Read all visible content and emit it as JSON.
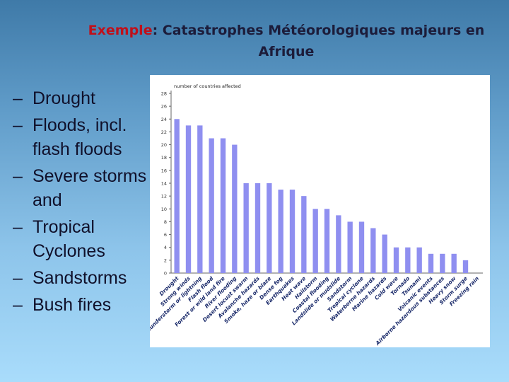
{
  "slide": {
    "title_keyword": "Exemple",
    "title_rest": ": Catastrophes Météorologiques majeurs en",
    "title_line2": "Afrique",
    "bullet_dash": "–",
    "bullets": [
      "Drought",
      "Floods, incl. flash floods",
      "Severe storms and",
      "Tropical Cyclones",
      "Sandstorms",
      "Bush fires"
    ]
  },
  "chart_data": {
    "type": "bar",
    "title": "number of countries affected",
    "xlabel": "",
    "ylabel": "",
    "ylim": [
      0,
      28
    ],
    "yticks": [
      0,
      2,
      4,
      6,
      8,
      10,
      12,
      14,
      16,
      18,
      20,
      22,
      24,
      26,
      28
    ],
    "grid": false,
    "bar_color": "#8f8ff0",
    "categories": [
      "Drought",
      "Strong winds",
      "Thunderstorm or lightning",
      "Flash flood",
      "Forest or wild land fire",
      "River flooding",
      "Desert locust swarm",
      "Avalanche hazards",
      "Smoke, haze or blaze",
      "Dense fog",
      "Earthquakes",
      "Heat wave",
      "Hailstorm",
      "Coastal flooding",
      "Landslide or mudslide",
      "Sandstorm",
      "Tropical cyclone",
      "Waterborne hazards",
      "Marine hazards",
      "Cold wave",
      "Tornado",
      "Tsunami",
      "Volcanic events",
      "Airborne hazardous substances",
      "Heavy snow",
      "Storm surge",
      "Freezing rain"
    ],
    "values": [
      24,
      23,
      23,
      21,
      21,
      20,
      14,
      14,
      14,
      13,
      13,
      12,
      10,
      10,
      9,
      8,
      8,
      7,
      6,
      4,
      4,
      4,
      3,
      3,
      3,
      2,
      0
    ]
  }
}
